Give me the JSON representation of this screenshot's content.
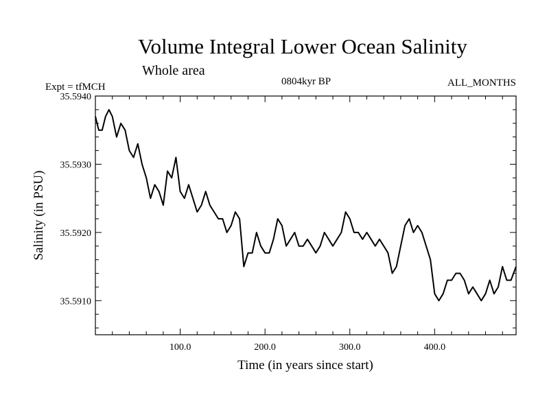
{
  "header": {
    "title": "Volume Integral Lower Ocean Salinity",
    "region": "Whole area",
    "experiment": "Expt = tfMCH",
    "period": "0804kyr BP",
    "months": "ALL_MONTHS"
  },
  "chart_data": {
    "type": "line",
    "title": "Volume Integral Lower Ocean Salinity",
    "xlabel": "Time (in years since start)",
    "ylabel": "Salinity (in PSU)",
    "xlim": [
      0,
      496
    ],
    "ylim": [
      35.5905,
      35.594
    ],
    "x_ticks": [
      100,
      200,
      300,
      400
    ],
    "x_tick_labels": [
      "100.0",
      "200.0",
      "300.0",
      "400.0"
    ],
    "y_ticks": [
      35.591,
      35.592,
      35.593,
      35.594
    ],
    "y_tick_labels": [
      "35.5910",
      "35.5920",
      "35.5930",
      "35.5940"
    ],
    "grid": false,
    "series": [
      {
        "name": "salinity",
        "x": [
          0,
          4,
          8,
          12,
          16,
          20,
          25,
          30,
          35,
          40,
          45,
          50,
          55,
          60,
          65,
          70,
          75,
          80,
          85,
          90,
          95,
          100,
          105,
          110,
          115,
          120,
          125,
          130,
          135,
          140,
          145,
          150,
          155,
          160,
          165,
          170,
          175,
          180,
          185,
          190,
          195,
          200,
          205,
          210,
          215,
          220,
          225,
          230,
          235,
          240,
          245,
          250,
          255,
          260,
          265,
          270,
          275,
          280,
          285,
          290,
          295,
          300,
          305,
          310,
          315,
          320,
          325,
          330,
          335,
          340,
          345,
          350,
          355,
          360,
          365,
          370,
          375,
          380,
          385,
          390,
          395,
          400,
          405,
          410,
          415,
          420,
          425,
          430,
          435,
          440,
          445,
          450,
          455,
          460,
          465,
          470,
          475,
          480,
          485,
          490,
          496
        ],
        "values": [
          35.5937,
          35.5935,
          35.5935,
          35.5937,
          35.5938,
          35.5937,
          35.5934,
          35.5936,
          35.5935,
          35.5932,
          35.5931,
          35.5933,
          35.593,
          35.5928,
          35.5925,
          35.5927,
          35.5926,
          35.5924,
          35.5929,
          35.5928,
          35.5931,
          35.5926,
          35.5925,
          35.5927,
          35.5925,
          35.5923,
          35.5924,
          35.5926,
          35.5924,
          35.5923,
          35.5922,
          35.5922,
          35.592,
          35.5921,
          35.5923,
          35.5922,
          35.5915,
          35.5917,
          35.5917,
          35.592,
          35.5918,
          35.5917,
          35.5917,
          35.5919,
          35.5922,
          35.5921,
          35.5918,
          35.5919,
          35.592,
          35.5918,
          35.5918,
          35.5919,
          35.5918,
          35.5917,
          35.5918,
          35.592,
          35.5919,
          35.5918,
          35.5919,
          35.592,
          35.5923,
          35.5922,
          35.592,
          35.592,
          35.5919,
          35.592,
          35.5919,
          35.5918,
          35.5919,
          35.5918,
          35.5917,
          35.5914,
          35.5915,
          35.5918,
          35.5921,
          35.5922,
          35.592,
          35.5921,
          35.592,
          35.5918,
          35.5916,
          35.5911,
          35.591,
          35.5911,
          35.5913,
          35.5913,
          35.5914,
          35.5914,
          35.5913,
          35.5911,
          35.5912,
          35.5911,
          35.591,
          35.5911,
          35.5913,
          35.5911,
          35.5912,
          35.5915,
          35.5913,
          35.5913,
          35.5915
        ]
      }
    ]
  }
}
